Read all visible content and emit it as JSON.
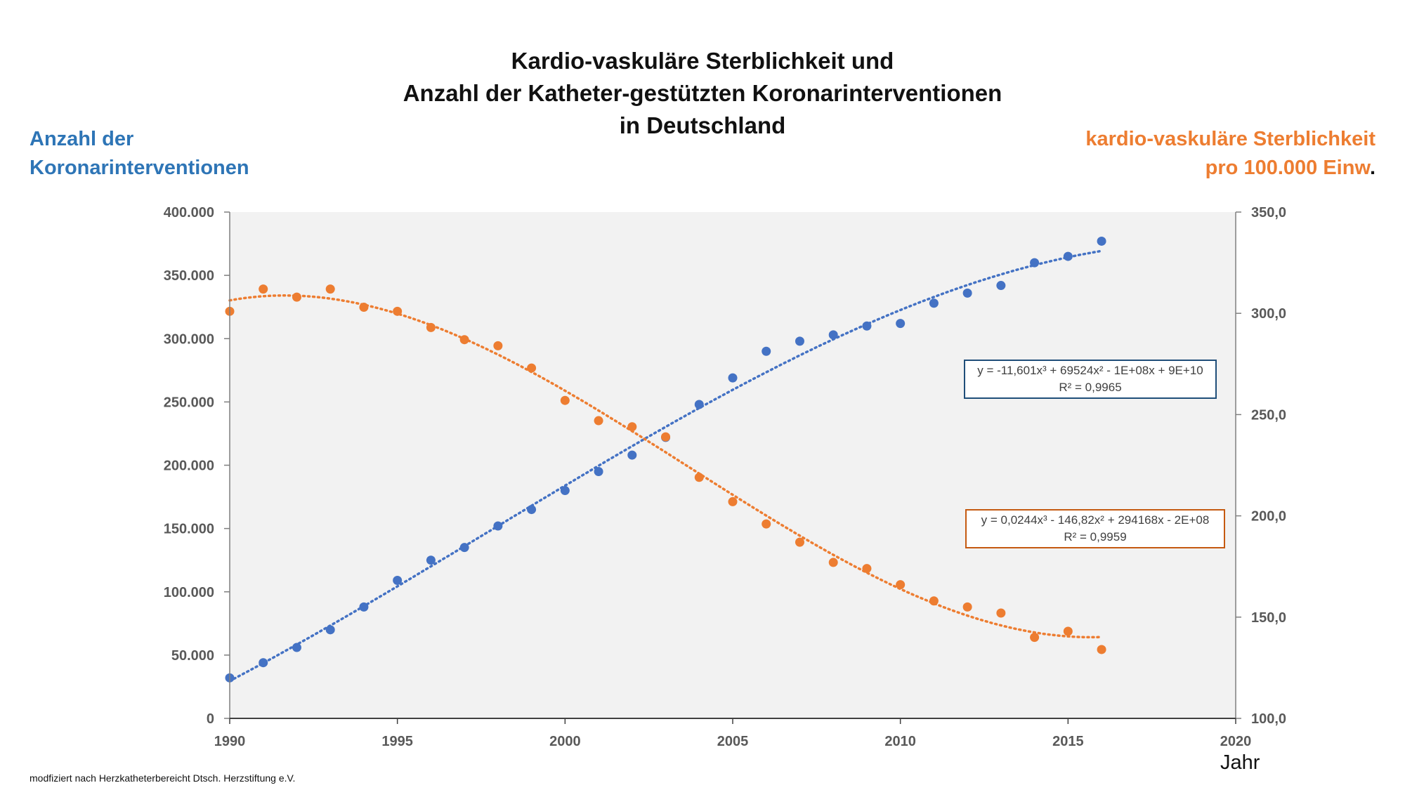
{
  "title_lines": [
    "Kardio-vaskuläre Sterblichkeit und",
    "Anzahl der Katheter-gestützten Koronarinterventionen",
    "in Deutschland"
  ],
  "left_axis_title": [
    "Anzahl der",
    "Koronarinterventionen"
  ],
  "right_axis_title": [
    "kardio-vaskuläre Sterblichkeit",
    "pro 100.000 Einw",
    "."
  ],
  "x_axis_title": "Jahr",
  "source_note": "modfiziert nach Herzkatheterbereicht Dtsch. Herzstiftung e.V.",
  "equations": {
    "blue": [
      "y = -11,601x³ + 69524x² - 1E+08x + 9E+10",
      "R² = 0,9965"
    ],
    "orange": [
      "y = 0,0244x³ - 146,82x² + 294168x - 2E+08",
      "R² = 0,9959"
    ]
  },
  "colors": {
    "blue": "#4472c4",
    "orange": "#ed7d31",
    "plot_background": "#f2f2f2",
    "axis_title_blue": "#2e75b6",
    "axis_title_orange": "#ed7d31"
  },
  "chart_data": {
    "type": "scatter",
    "x_ticks": [
      "1990",
      "1995",
      "2000",
      "2005",
      "2010",
      "2015",
      "2020"
    ],
    "y_left_ticks": [
      "0",
      "50.000",
      "100.000",
      "150.000",
      "200.000",
      "250.000",
      "300.000",
      "350.000",
      "400.000"
    ],
    "y_right_ticks": [
      "100,0",
      "150,0",
      "200,0",
      "250,0",
      "300,0",
      "350,0"
    ],
    "xlim": [
      1990,
      2020
    ],
    "ylim_left": [
      0,
      400000
    ],
    "ylim_right": [
      100,
      350
    ],
    "grid": false,
    "series": [
      {
        "axis": "left",
        "color": "#4472c4",
        "trendline": "polynomial-3",
        "x": [
          1990,
          1991,
          1992,
          1993,
          1994,
          1995,
          1996,
          1997,
          1998,
          1999,
          2000,
          2001,
          2002,
          2003,
          2004,
          2005,
          2006,
          2007,
          2008,
          2009,
          2010,
          2011,
          2012,
          2013,
          2014,
          2015,
          2016
        ],
        "y": [
          32000,
          44000,
          56000,
          70000,
          88000,
          109000,
          125000,
          135000,
          152000,
          165000,
          180000,
          195000,
          208000,
          222000,
          248000,
          269000,
          290000,
          298000,
          303000,
          310000,
          312000,
          328000,
          336000,
          342000,
          360000,
          365000,
          377000
        ]
      },
      {
        "axis": "right",
        "color": "#ed7d31",
        "trendline": "polynomial-3",
        "x": [
          1990,
          1991,
          1992,
          1993,
          1994,
          1995,
          1996,
          1997,
          1998,
          1999,
          2000,
          2001,
          2002,
          2003,
          2004,
          2005,
          2006,
          2007,
          2008,
          2009,
          2010,
          2011,
          2012,
          2013,
          2014,
          2015,
          2016
        ],
        "y": [
          301,
          312,
          308,
          312,
          303,
          301,
          293,
          287,
          284,
          273,
          257,
          247,
          244,
          239,
          219,
          207,
          196,
          187,
          177,
          174,
          166,
          158,
          155,
          152,
          140,
          143,
          134
        ]
      }
    ]
  }
}
